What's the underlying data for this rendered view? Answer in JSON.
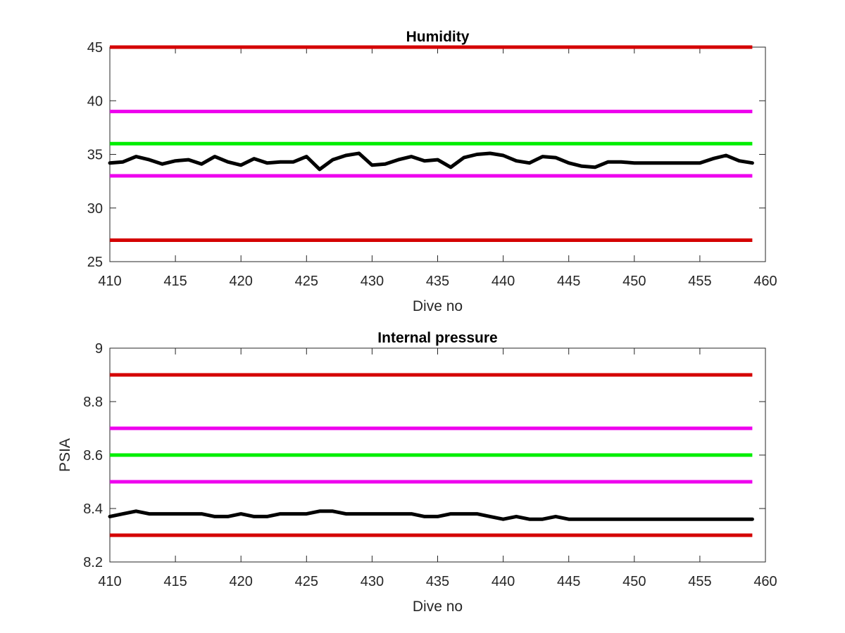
{
  "chart_data": [
    {
      "type": "line",
      "title": "Humidity",
      "xlabel": "Dive no",
      "ylabel": "",
      "xlim": [
        410,
        460
      ],
      "ylim": [
        25,
        45
      ],
      "xticks": [
        410,
        415,
        420,
        425,
        430,
        435,
        440,
        445,
        450,
        455,
        460
      ],
      "yticks": [
        25,
        30,
        35,
        40,
        45
      ],
      "grid": false,
      "legend": "none",
      "limit_lines": [
        {
          "value": 45,
          "color": "#d40000"
        },
        {
          "value": 39,
          "color": "#ee00ee"
        },
        {
          "value": 36,
          "color": "#00ee00"
        },
        {
          "value": 33,
          "color": "#ee00ee"
        },
        {
          "value": 27,
          "color": "#d40000"
        }
      ],
      "series": [
        {
          "color": "#000000",
          "x": [
            410,
            411,
            412,
            413,
            414,
            415,
            416,
            417,
            418,
            419,
            420,
            421,
            422,
            423,
            424,
            425,
            426,
            427,
            428,
            429,
            430,
            431,
            432,
            433,
            434,
            435,
            436,
            437,
            438,
            439,
            440,
            441,
            442,
            443,
            444,
            445,
            446,
            447,
            448,
            449,
            450,
            451,
            452,
            453,
            454,
            455,
            456,
            457,
            458,
            459
          ],
          "y": [
            34.2,
            34.3,
            34.8,
            34.5,
            34.1,
            34.4,
            34.5,
            34.1,
            34.8,
            34.3,
            34.0,
            34.6,
            34.2,
            34.3,
            34.3,
            34.8,
            33.6,
            34.5,
            34.9,
            35.1,
            34.0,
            34.1,
            34.5,
            34.8,
            34.4,
            34.5,
            33.8,
            34.7,
            35.0,
            35.1,
            34.9,
            34.4,
            34.2,
            34.8,
            34.7,
            34.2,
            33.9,
            33.8,
            34.3,
            34.3,
            34.2,
            34.2,
            34.2,
            34.2,
            34.2,
            34.2,
            34.6,
            34.9,
            34.4,
            34.2
          ]
        }
      ]
    },
    {
      "type": "line",
      "title": "Internal pressure",
      "xlabel": "Dive no",
      "ylabel": "PSIA",
      "xlim": [
        410,
        460
      ],
      "ylim": [
        8.2,
        9
      ],
      "xticks": [
        410,
        415,
        420,
        425,
        430,
        435,
        440,
        445,
        450,
        455,
        460
      ],
      "yticks": [
        8.2,
        8.4,
        8.6,
        8.8,
        9
      ],
      "grid": false,
      "legend": "none",
      "limit_lines": [
        {
          "value": 8.9,
          "color": "#d40000"
        },
        {
          "value": 8.7,
          "color": "#ee00ee"
        },
        {
          "value": 8.6,
          "color": "#00ee00"
        },
        {
          "value": 8.5,
          "color": "#ee00ee"
        },
        {
          "value": 8.3,
          "color": "#d40000"
        }
      ],
      "series": [
        {
          "color": "#000000",
          "x": [
            410,
            411,
            412,
            413,
            414,
            415,
            416,
            417,
            418,
            419,
            420,
            421,
            422,
            423,
            424,
            425,
            426,
            427,
            428,
            429,
            430,
            431,
            432,
            433,
            434,
            435,
            436,
            437,
            438,
            439,
            440,
            441,
            442,
            443,
            444,
            445,
            446,
            447,
            448,
            449,
            450,
            451,
            452,
            453,
            454,
            455,
            456,
            457,
            458,
            459
          ],
          "y": [
            8.37,
            8.38,
            8.39,
            8.38,
            8.38,
            8.38,
            8.38,
            8.38,
            8.37,
            8.37,
            8.38,
            8.37,
            8.37,
            8.38,
            8.38,
            8.38,
            8.39,
            8.39,
            8.38,
            8.38,
            8.38,
            8.38,
            8.38,
            8.38,
            8.37,
            8.37,
            8.38,
            8.38,
            8.38,
            8.37,
            8.36,
            8.37,
            8.36,
            8.36,
            8.37,
            8.36,
            8.36,
            8.36,
            8.36,
            8.36,
            8.36,
            8.36,
            8.36,
            8.36,
            8.36,
            8.36,
            8.36,
            8.36,
            8.36,
            8.36
          ]
        }
      ]
    }
  ]
}
